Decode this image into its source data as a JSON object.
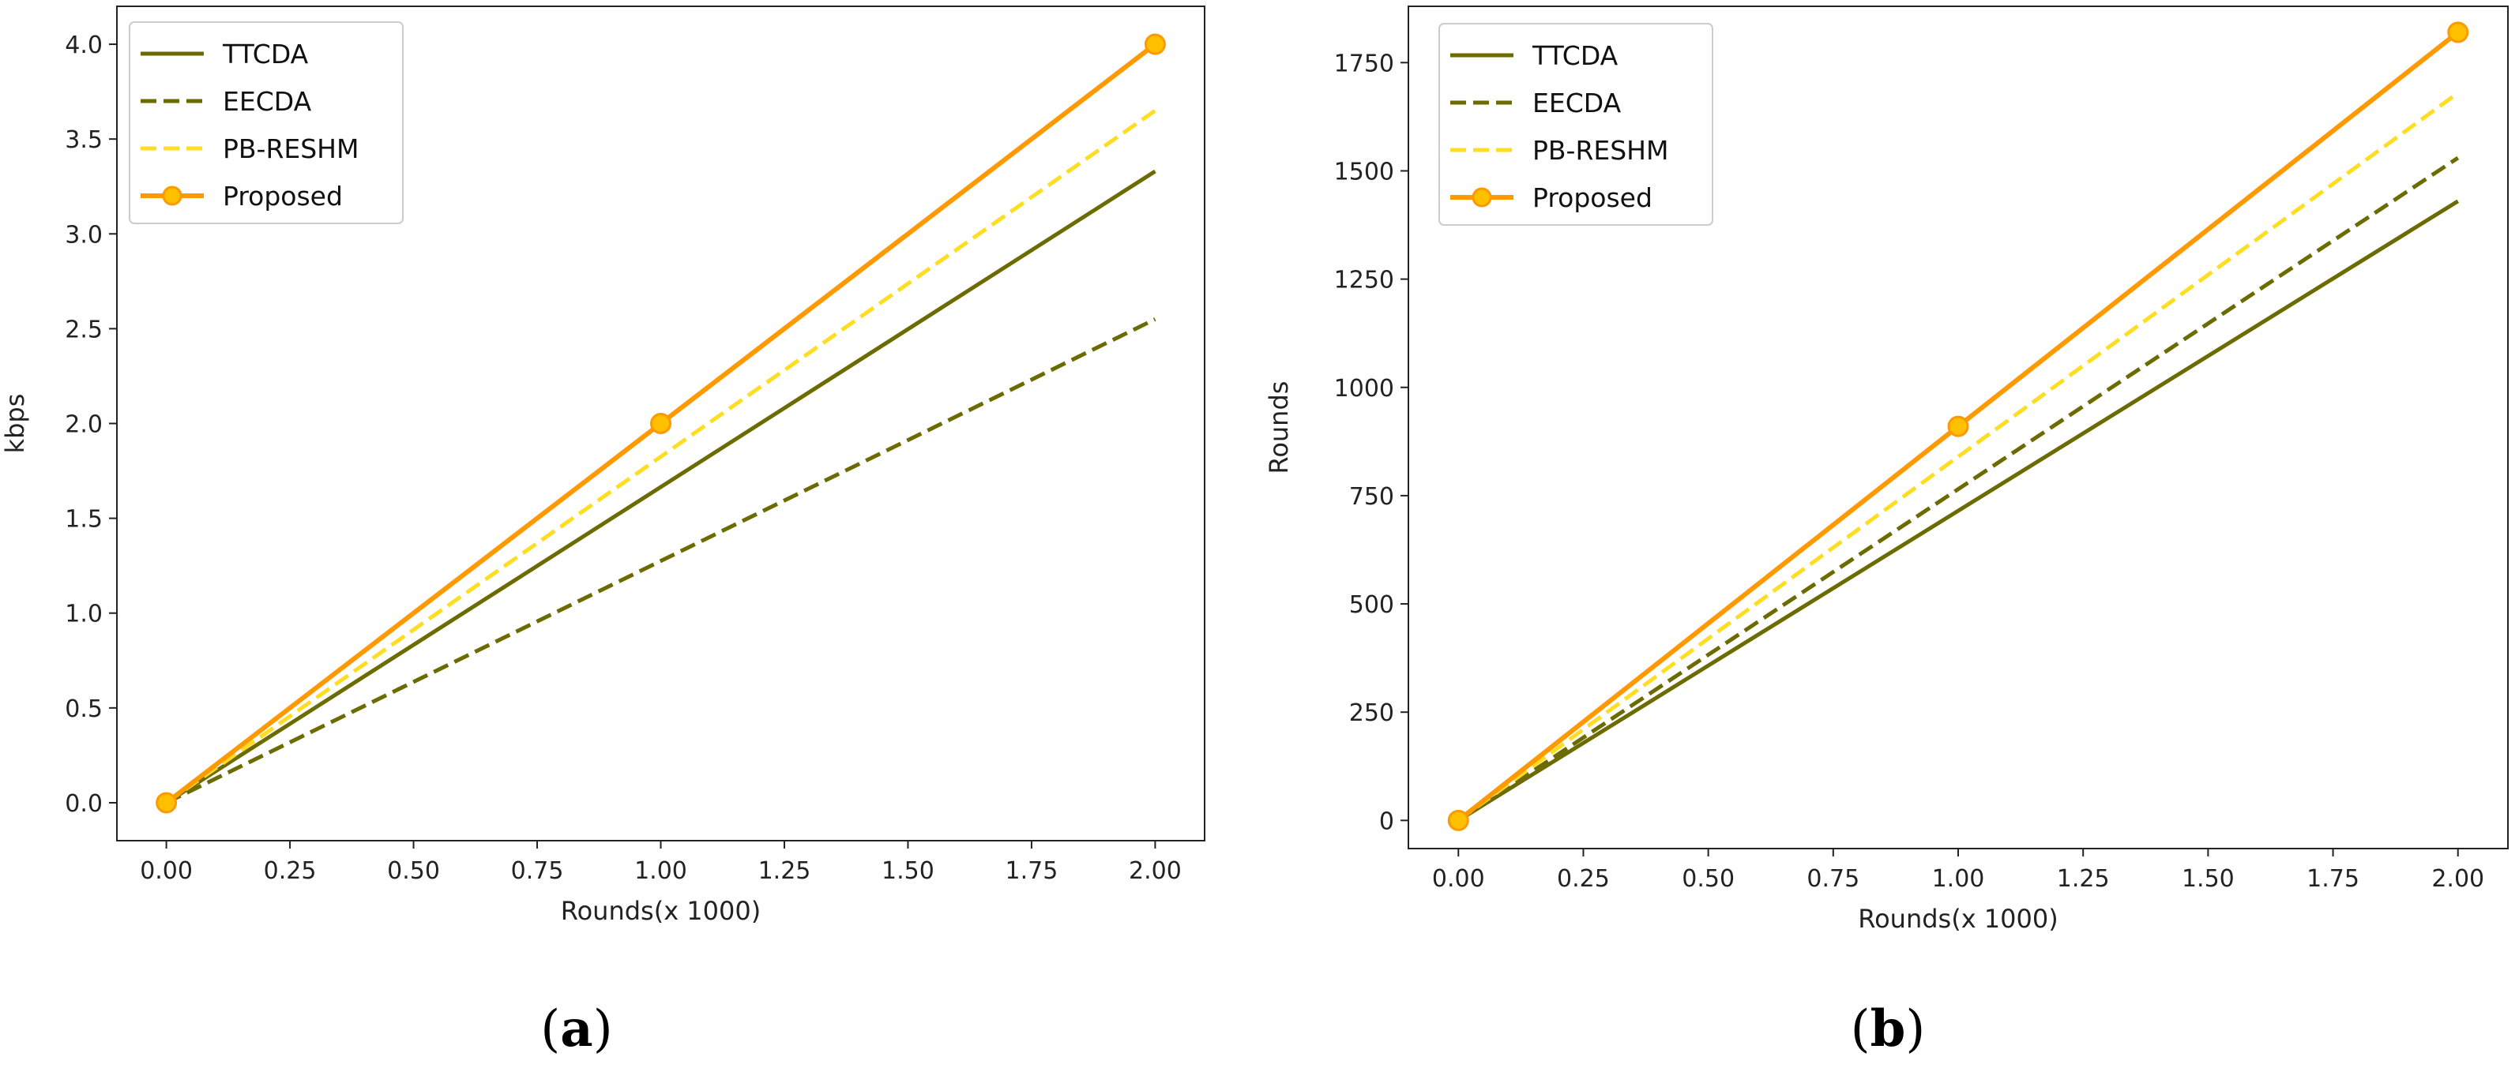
{
  "figure": {
    "panel_a_label": "a",
    "panel_b_label": "b"
  },
  "colors": {
    "TTCDA": "#6b6b00",
    "EECDA": "#6b6b00",
    "PB-RESHM": "#ffdd22",
    "Proposed": "#ff9900",
    "Proposed_marker": "#ffc000"
  },
  "chart_data": [
    {
      "type": "line",
      "title": "",
      "xlabel": "Rounds(x 1000)",
      "ylabel": "kbps",
      "xlim": [
        -0.1,
        2.1
      ],
      "ylim": [
        -0.2,
        4.2
      ],
      "xticks": [
        "0.00",
        "0.25",
        "0.50",
        "0.75",
        "1.00",
        "1.25",
        "1.50",
        "1.75",
        "2.00"
      ],
      "yticks": [
        "0.0",
        "0.5",
        "1.0",
        "1.5",
        "2.0",
        "2.5",
        "3.0",
        "3.5",
        "4.0"
      ],
      "legend_position": "top-left",
      "series": [
        {
          "name": "TTCDA",
          "style": "solid",
          "marker": false,
          "x": [
            0,
            2
          ],
          "values": [
            0,
            3.33
          ]
        },
        {
          "name": "EECDA",
          "style": "dashed",
          "marker": false,
          "x": [
            0,
            2
          ],
          "values": [
            0,
            2.55
          ]
        },
        {
          "name": "PB-RESHM",
          "style": "dashed",
          "marker": false,
          "x": [
            0,
            2
          ],
          "values": [
            0,
            3.65
          ]
        },
        {
          "name": "Proposed",
          "style": "solid",
          "marker": true,
          "x": [
            0,
            1,
            2
          ],
          "values": [
            0,
            2.0,
            4.0
          ]
        }
      ]
    },
    {
      "type": "line",
      "title": "",
      "xlabel": "Rounds(x 1000)",
      "ylabel": "Rounds",
      "xlim": [
        -0.1,
        2.1
      ],
      "ylim": [
        -65,
        1880
      ],
      "xticks": [
        "0.00",
        "0.25",
        "0.50",
        "0.75",
        "1.00",
        "1.25",
        "1.50",
        "1.75",
        "2.00"
      ],
      "yticks": [
        "0",
        "250",
        "500",
        "750",
        "1000",
        "1250",
        "1500",
        "1750"
      ],
      "legend_position": "top-left",
      "series": [
        {
          "name": "TTCDA",
          "style": "solid",
          "marker": false,
          "x": [
            0,
            2
          ],
          "values": [
            0,
            1430
          ]
        },
        {
          "name": "EECDA",
          "style": "dashed",
          "marker": false,
          "x": [
            0,
            2
          ],
          "values": [
            0,
            1530
          ]
        },
        {
          "name": "PB-RESHM",
          "style": "dashed",
          "marker": false,
          "x": [
            0,
            2
          ],
          "values": [
            0,
            1680
          ]
        },
        {
          "name": "Proposed",
          "style": "solid",
          "marker": true,
          "x": [
            0,
            1,
            2
          ],
          "values": [
            0,
            910,
            1820
          ]
        }
      ]
    }
  ]
}
